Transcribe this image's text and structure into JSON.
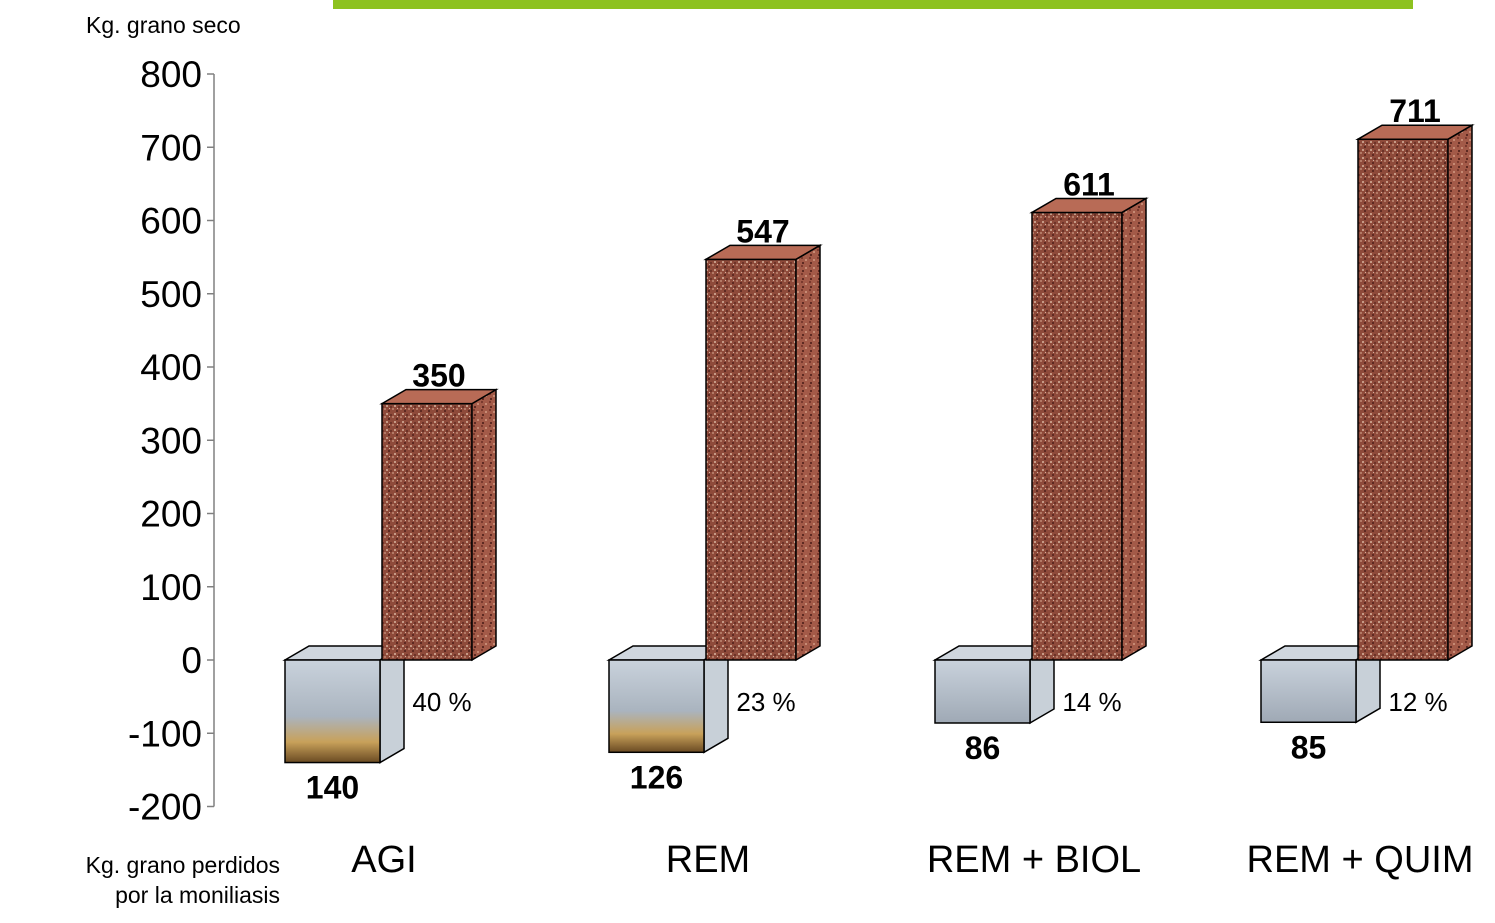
{
  "chart_data": {
    "type": "bar",
    "ylabel_top": "Kg. grano seco",
    "ylabel_bottom_line1": "Kg. grano perdidos",
    "ylabel_bottom_line2": "por la moniliasis",
    "ylim": [
      -200,
      800
    ],
    "yticks": [
      800,
      700,
      600,
      500,
      400,
      300,
      200,
      100,
      0,
      -100,
      -200
    ],
    "categories": [
      "AGI",
      "REM",
      "REM + BIOL",
      "REM + QUIM"
    ],
    "series": [
      {
        "values": [
          350,
          547,
          611,
          711
        ]
      },
      {
        "values": [
          -140,
          -126,
          -86,
          -85
        ]
      }
    ],
    "value_labels_top": [
      "350",
      "547",
      "611",
      "711"
    ],
    "value_labels_loss": [
      "140",
      "126",
      "86",
      "85"
    ],
    "percent_labels": [
      "40 %",
      "23 %",
      "14 %",
      "12 %"
    ],
    "colors": {
      "top_bar_front": "#8e4a3a",
      "top_bar_side": "#a35a48",
      "top_bar_top": "#b86b56",
      "loss_bar_front": "#b9c4cf",
      "loss_bar_side": "#c8d0d8",
      "loss_bar_top": "#cfd6de",
      "accent_line": "#8dc21f"
    }
  }
}
